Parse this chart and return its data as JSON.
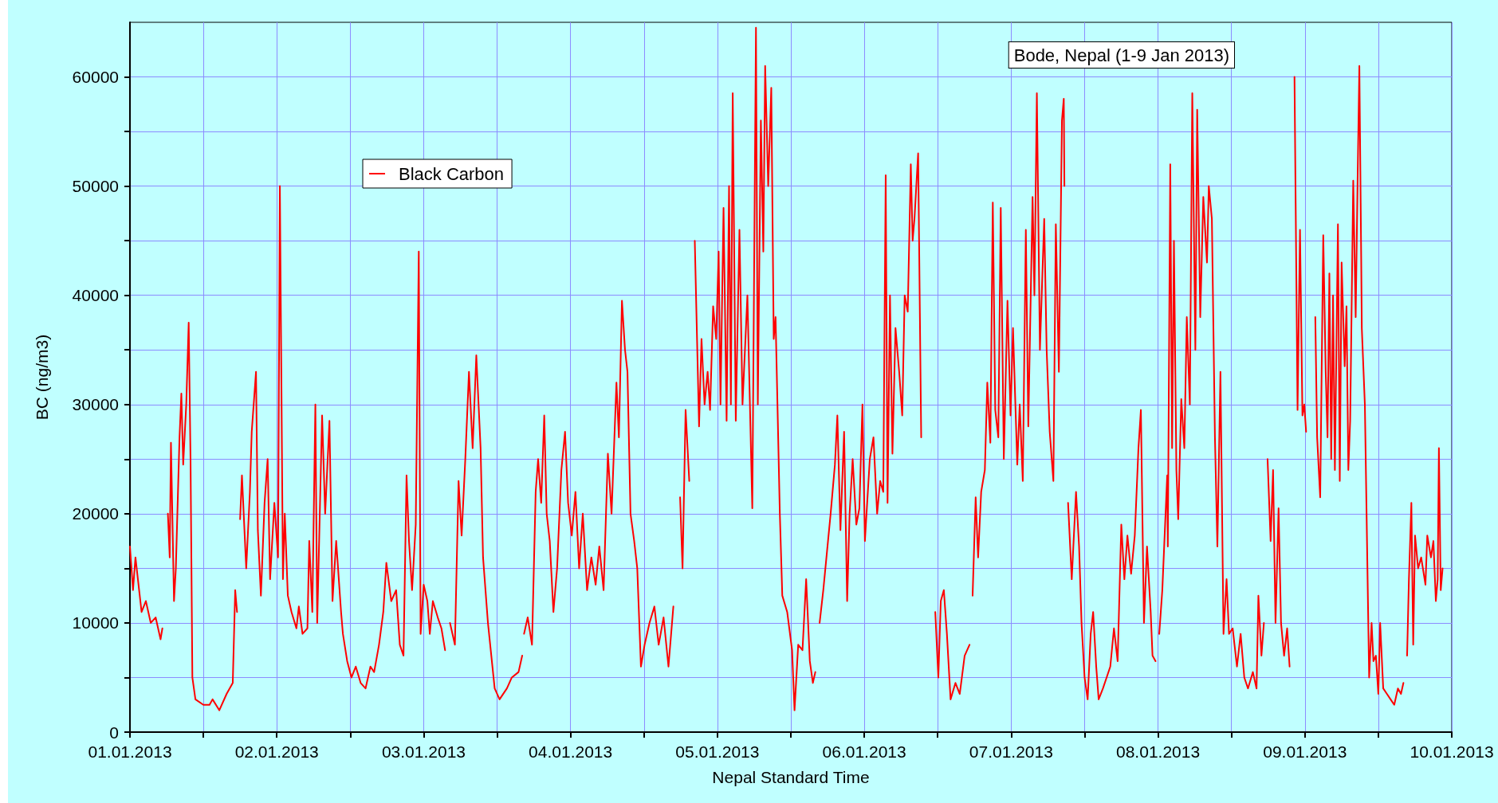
{
  "chart_data": {
    "type": "line",
    "xlabel": "Nepal Standard Time",
    "ylabel": "BC (ng/m3)",
    "annotations": [
      "Bode, Nepal (1-9 Jan 2013)"
    ],
    "xlim": [
      "2013-01-01T00:00",
      "2013-01-10T00:00"
    ],
    "xticks": [
      {
        "value": "2013-01-01T00:00",
        "label": "01.01.2013"
      },
      {
        "value": "2013-01-01T12:00",
        "label": null
      },
      {
        "value": "2013-01-02T00:00",
        "label": "02.01.2013"
      },
      {
        "value": "2013-01-02T12:00",
        "label": null
      },
      {
        "value": "2013-01-03T00:00",
        "label": "03.01.2013"
      },
      {
        "value": "2013-01-03T12:00",
        "label": null
      },
      {
        "value": "2013-01-04T00:00",
        "label": "04.01.2013"
      },
      {
        "value": "2013-01-04T12:00",
        "label": null
      },
      {
        "value": "2013-01-05T00:00",
        "label": "05.01.2013"
      },
      {
        "value": "2013-01-05T12:00",
        "label": null
      },
      {
        "value": "2013-01-06T00:00",
        "label": "06.01.2013"
      },
      {
        "value": "2013-01-06T12:00",
        "label": null
      },
      {
        "value": "2013-01-07T00:00",
        "label": "07.01.2013"
      },
      {
        "value": "2013-01-07T12:00",
        "label": null
      },
      {
        "value": "2013-01-08T00:00",
        "label": "08.01.2013"
      },
      {
        "value": "2013-01-08T12:00",
        "label": null
      },
      {
        "value": "2013-01-09T00:00",
        "label": "09.01.2013"
      },
      {
        "value": "2013-01-09T12:00",
        "label": null
      },
      {
        "value": "2013-01-10T00:00",
        "label": "10.01.2013"
      }
    ],
    "ylim": [
      0,
      65000
    ],
    "yticks": [
      0,
      {
        "value": 5000,
        "label": null
      },
      10000,
      {
        "value": 15000,
        "label": null
      },
      20000,
      {
        "value": 25000,
        "label": null
      },
      30000,
      {
        "value": 35000,
        "label": null
      },
      40000,
      {
        "value": 45000,
        "label": null
      },
      50000,
      {
        "value": 55000,
        "label": null
      },
      60000
    ],
    "grid": true,
    "legend": "top left",
    "marker": "none",
    "line_style": "solid",
    "x": [
      "2013-01-01T00:00",
      "2013-01-01T00:30",
      "2013-01-01T00:54",
      "2013-01-01T01:54",
      "2013-01-01T02:36",
      "2013-01-01T03:24",
      "2013-01-01T04:12",
      "2013-01-01T05:00",
      "2013-01-01T05:18",
      "2013-01-01T05:45",
      "2013-01-01T06:12",
      "2013-01-01T06:30",
      "2013-01-01T06:42",
      "2013-01-01T07:12",
      "2013-01-01T07:30",
      "2013-01-01T08:06",
      "2013-01-01T08:24",
      "2013-01-01T08:42",
      "2013-01-01T09:12",
      "2013-01-01T09:36",
      "2013-01-01T09:54",
      "2013-01-01T10:12",
      "2013-01-01T10:42",
      "2013-01-01T12:00",
      "2013-01-01T13:00",
      "2013-01-01T13:30",
      "2013-01-01T14:36",
      "2013-01-01T15:48",
      "2013-01-01T16:48",
      "2013-01-01T17:12",
      "2013-01-01T17:30",
      "2013-01-01T17:45",
      "2013-01-01T18:00",
      "2013-01-01T18:18",
      "2013-01-01T19:00",
      "2013-01-01T19:36",
      "2013-01-01T19:54",
      "2013-01-01T20:36",
      "2013-01-01T20:54",
      "2013-01-01T21:24",
      "2013-01-01T22:00",
      "2013-01-01T22:30",
      "2013-01-01T22:54",
      "2013-01-01T23:36",
      "2013-01-02T00:12",
      "2013-01-02T00:30",
      "2013-01-02T01:00",
      "2013-01-02T01:18",
      "2013-01-02T01:48",
      "2013-01-02T02:24",
      "2013-01-02T03:12",
      "2013-01-02T03:36",
      "2013-01-02T04:12",
      "2013-01-02T05:00",
      "2013-01-02T05:18",
      "2013-01-02T05:48",
      "2013-01-02T06:18",
      "2013-01-02T06:36",
      "2013-01-02T07:24",
      "2013-01-02T07:54",
      "2013-01-02T08:36",
      "2013-01-02T09:06",
      "2013-01-02T09:42",
      "2013-01-02T10:30",
      "2013-01-02T10:48",
      "2013-01-02T11:30",
      "2013-01-02T12:12",
      "2013-01-02T12:54",
      "2013-01-02T13:42",
      "2013-01-02T14:30",
      "2013-01-02T15:18",
      "2013-01-02T15:54",
      "2013-01-02T16:42",
      "2013-01-02T17:24",
      "2013-01-02T17:54",
      "2013-01-02T18:42",
      "2013-01-02T19:30",
      "2013-01-02T20:06",
      "2013-01-02T20:42",
      "2013-01-02T21:12",
      "2013-01-02T21:36",
      "2013-01-02T22:06",
      "2013-01-02T22:42",
      "2013-01-02T23:12",
      "2013-01-02T23:30",
      "2013-01-03T00:00",
      "2013-01-03T00:36",
      "2013-01-03T01:00",
      "2013-01-03T01:30",
      "2013-01-03T02:18",
      "2013-01-03T02:54",
      "2013-01-03T03:30",
      "2013-01-03T03:54",
      "2013-01-03T04:18",
      "2013-01-03T05:06",
      "2013-01-03T05:42",
      "2013-01-03T06:12",
      "2013-01-03T06:48",
      "2013-01-03T07:24",
      "2013-01-03T08:00",
      "2013-01-03T08:36",
      "2013-01-03T09:18",
      "2013-01-03T09:42",
      "2013-01-03T10:30",
      "2013-01-03T11:36",
      "2013-01-03T12:24",
      "2013-01-03T13:36",
      "2013-01-03T14:24",
      "2013-01-03T15:30",
      "2013-01-03T16:06",
      "2013-01-03T16:15",
      "2013-01-03T16:24",
      "2013-01-03T17:00",
      "2013-01-03T17:42",
      "2013-01-03T18:18",
      "2013-01-03T18:42",
      "2013-01-03T19:12",
      "2013-01-03T19:42",
      "2013-01-03T20:06",
      "2013-01-03T20:36",
      "2013-01-03T21:12",
      "2013-01-03T21:48",
      "2013-01-03T22:30",
      "2013-01-03T23:06",
      "2013-01-03T23:36",
      "2013-01-04T00:12",
      "2013-01-04T00:48",
      "2013-01-04T01:24",
      "2013-01-04T02:00",
      "2013-01-04T02:42",
      "2013-01-04T03:24",
      "2013-01-04T04:06",
      "2013-01-04T04:42",
      "2013-01-04T05:24",
      "2013-01-04T06:06",
      "2013-01-04T06:42",
      "2013-01-04T07:30",
      "2013-01-04T07:54",
      "2013-01-04T08:24",
      "2013-01-04T08:54",
      "2013-01-04T09:18",
      "2013-01-04T09:48",
      "2013-01-04T10:24",
      "2013-01-04T10:54",
      "2013-01-04T11:30",
      "2013-01-04T12:06",
      "2013-01-04T12:54",
      "2013-01-04T13:42",
      "2013-01-04T14:24",
      "2013-01-04T15:12",
      "2013-01-04T16:00",
      "2013-01-04T16:48",
      "2013-01-04T17:15",
      "2013-01-04T17:54",
      "2013-01-04T18:18",
      "2013-01-04T18:48",
      "2013-01-04T19:24",
      "2013-01-04T19:45",
      "2013-01-04T20:18",
      "2013-01-04T21:00",
      "2013-01-04T21:24",
      "2013-01-04T21:54",
      "2013-01-04T22:24",
      "2013-01-04T22:48",
      "2013-01-04T23:18",
      "2013-01-04T23:48",
      "2013-01-05T00:12",
      "2013-01-05T00:30",
      "2013-01-05T01:00",
      "2013-01-05T01:30",
      "2013-01-05T01:54",
      "2013-01-05T02:12",
      "2013-01-05T02:30",
      "2013-01-05T03:00",
      "2013-01-05T03:36",
      "2013-01-05T04:06",
      "2013-01-05T04:54",
      "2013-01-05T05:42",
      "2013-01-05T06:18",
      "2013-01-05T06:36",
      "2013-01-05T07:06",
      "2013-01-05T07:30",
      "2013-01-05T07:48",
      "2013-01-05T08:18",
      "2013-01-05T08:48",
      "2013-01-05T09:12",
      "2013-01-05T09:30",
      "2013-01-05T10:12",
      "2013-01-05T10:36",
      "2013-01-05T11:24",
      "2013-01-05T12:12",
      "2013-01-05T12:36",
      "2013-01-05T13:12",
      "2013-01-05T13:54",
      "2013-01-05T14:30",
      "2013-01-05T15:06",
      "2013-01-05T15:36",
      "2013-01-05T16:00",
      "2013-01-05T16:20",
      "2013-01-05T16:42",
      "2013-01-05T17:18",
      "2013-01-05T17:54",
      "2013-01-05T18:30",
      "2013-01-05T19:12",
      "2013-01-05T19:36",
      "2013-01-05T20:06",
      "2013-01-05T20:42",
      "2013-01-05T21:12",
      "2013-01-05T21:36",
      "2013-01-05T22:06",
      "2013-01-05T22:42",
      "2013-01-05T23:12",
      "2013-01-05T23:42",
      "2013-01-06T00:06",
      "2013-01-06T00:54",
      "2013-01-06T01:30",
      "2013-01-06T02:06",
      "2013-01-06T02:36",
      "2013-01-06T03:06",
      "2013-01-06T03:30",
      "2013-01-06T03:48",
      "2013-01-06T04:12",
      "2013-01-06T04:36",
      "2013-01-06T05:06",
      "2013-01-06T05:42",
      "2013-01-06T06:12",
      "2013-01-06T06:36",
      "2013-01-06T07:06",
      "2013-01-06T07:36",
      "2013-01-06T07:54",
      "2013-01-06T08:12",
      "2013-01-06T08:48",
      "2013-01-06T09:18",
      "2013-01-06T10:30",
      "2013-01-06T11:36",
      "2013-01-06T12:06",
      "2013-01-06T12:30",
      "2013-01-06T13:00",
      "2013-01-06T13:30",
      "2013-01-06T14:06",
      "2013-01-06T14:54",
      "2013-01-06T15:36",
      "2013-01-06T16:24",
      "2013-01-06T17:12",
      "2013-01-06T17:25",
      "2013-01-06T17:42",
      "2013-01-06T18:12",
      "2013-01-06T18:36",
      "2013-01-06T19:06",
      "2013-01-06T19:42",
      "2013-01-06T20:06",
      "2013-01-06T20:36",
      "2013-01-06T21:00",
      "2013-01-06T21:24",
      "2013-01-06T21:54",
      "2013-01-06T22:18",
      "2013-01-06T22:48",
      "2013-01-06T23:24",
      "2013-01-06T23:54",
      "2013-01-07T00:18",
      "2013-01-07T01:00",
      "2013-01-07T01:24",
      "2013-01-07T01:54",
      "2013-01-07T02:24",
      "2013-01-07T02:48",
      "2013-01-07T03:30",
      "2013-01-07T03:48",
      "2013-01-07T04:12",
      "2013-01-07T04:42",
      "2013-01-07T05:24",
      "2013-01-07T05:48",
      "2013-01-07T06:18",
      "2013-01-07T06:54",
      "2013-01-07T07:18",
      "2013-01-07T07:48",
      "2013-01-07T08:18",
      "2013-01-07T08:36",
      "2013-01-07T08:42",
      "2013-01-07T08:50",
      "2013-01-07T09:18",
      "2013-01-07T09:54",
      "2013-01-07T10:36",
      "2013-01-07T11:06",
      "2013-01-07T11:30",
      "2013-01-07T12:00",
      "2013-01-07T12:30",
      "2013-01-07T13:00",
      "2013-01-07T13:24",
      "2013-01-07T13:54",
      "2013-01-07T14:18",
      "2013-01-07T15:00",
      "2013-01-07T15:36",
      "2013-01-07T16:12",
      "2013-01-07T16:48",
      "2013-01-07T17:24",
      "2013-01-07T18:00",
      "2013-01-07T18:30",
      "2013-01-07T19:00",
      "2013-01-07T19:36",
      "2013-01-07T20:12",
      "2013-01-07T20:48",
      "2013-01-07T21:12",
      "2013-01-07T21:42",
      "2013-01-07T22:12",
      "2013-01-07T22:48",
      "2013-01-07T23:06",
      "2013-01-07T23:36",
      "2013-01-07T23:50",
      "2013-01-08T00:12",
      "2013-01-08T00:42",
      "2013-01-08T01:30",
      "2013-01-08T01:36",
      "2013-01-08T02:00",
      "2013-01-08T02:18",
      "2013-01-08T02:36",
      "2013-01-08T03:00",
      "2013-01-08T03:18",
      "2013-01-08T03:48",
      "2013-01-08T04:18",
      "2013-01-08T04:42",
      "2013-01-08T05:12",
      "2013-01-08T05:36",
      "2013-01-08T06:06",
      "2013-01-08T06:24",
      "2013-01-08T06:54",
      "2013-01-08T07:24",
      "2013-01-08T08:00",
      "2013-01-08T08:18",
      "2013-01-08T08:48",
      "2013-01-08T09:18",
      "2013-01-08T09:42",
      "2013-01-08T10:12",
      "2013-01-08T10:42",
      "2013-01-08T11:12",
      "2013-01-08T11:36",
      "2013-01-08T12:12",
      "2013-01-08T12:54",
      "2013-01-08T13:30",
      "2013-01-08T14:06",
      "2013-01-08T14:42",
      "2013-01-08T15:30",
      "2013-01-08T16:06",
      "2013-01-08T16:24",
      "2013-01-08T16:54",
      "2013-01-08T17:18",
      "2013-01-08T17:35",
      "2013-01-08T17:54",
      "2013-01-08T18:24",
      "2013-01-08T18:48",
      "2013-01-08T19:12",
      "2013-01-08T19:42",
      "2013-01-08T20:06",
      "2013-01-08T20:36",
      "2013-01-08T21:06",
      "2013-01-08T21:30",
      "2013-01-08T21:50",
      "2013-01-08T22:18",
      "2013-01-08T22:48",
      "2013-01-08T23:12",
      "2013-01-08T23:36",
      "2013-01-08T23:54",
      "2013-01-09T00:12",
      "2013-01-09T01:00",
      "2013-01-09T01:42",
      "2013-01-09T02:00",
      "2013-01-09T02:30",
      "2013-01-09T03:00",
      "2013-01-09T03:24",
      "2013-01-09T03:42",
      "2013-01-09T04:00",
      "2013-01-09T04:18",
      "2013-01-09T04:36",
      "2013-01-09T04:54",
      "2013-01-09T05:24",
      "2013-01-09T05:42",
      "2013-01-09T06:00",
      "2013-01-09T06:30",
      "2013-01-09T06:48",
      "2013-01-09T07:06",
      "2013-01-09T07:24",
      "2013-01-09T07:54",
      "2013-01-09T08:18",
      "2013-01-09T08:36",
      "2013-01-09T08:54",
      "2013-01-09T09:12",
      "2013-01-09T09:18",
      "2013-01-09T09:48",
      "2013-01-09T10:30",
      "2013-01-09T10:54",
      "2013-01-09T11:12",
      "2013-01-09T11:36",
      "2013-01-09T12:00",
      "2013-01-09T12:18",
      "2013-01-09T12:48",
      "2013-01-09T13:24",
      "2013-01-09T14:00",
      "2013-01-09T14:36",
      "2013-01-09T15:12",
      "2013-01-09T15:42",
      "2013-01-09T16:06",
      "2013-01-09T16:20",
      "2013-01-09T16:42",
      "2013-01-09T17:00",
      "2013-01-09T17:24",
      "2013-01-09T17:42",
      "2013-01-09T18:00",
      "2013-01-09T18:30",
      "2013-01-09T19:00",
      "2013-01-09T19:42",
      "2013-01-09T20:00",
      "2013-01-09T20:36",
      "2013-01-09T21:00",
      "2013-01-09T21:24",
      "2013-01-09T21:42",
      "2013-01-09T21:54",
      "2013-01-09T22:12",
      "2013-01-09T22:30"
    ],
    "series": [
      {
        "name": "Black Carbon",
        "color": "#ff0000",
        "values": [
          17000,
          13000,
          16000,
          11000,
          12000,
          10000,
          10500,
          8500,
          9500,
          null,
          20000,
          16000,
          26500,
          12000,
          15000,
          27000,
          31000,
          24500,
          30000,
          37500,
          25000,
          5000,
          3000,
          2500,
          2500,
          3000,
          2000,
          3500,
          4500,
          13000,
          11000,
          null,
          19500,
          23500,
          15000,
          22000,
          27500,
          33000,
          18500,
          12500,
          21000,
          25000,
          14000,
          21000,
          16000,
          50000,
          14000,
          20000,
          12500,
          11000,
          9500,
          11500,
          9000,
          9500,
          17500,
          11000,
          30000,
          10000,
          29000,
          20000,
          28500,
          12000,
          17500,
          11000,
          9000,
          6500,
          5000,
          6000,
          4500,
          4000,
          6000,
          5500,
          8000,
          11000,
          15500,
          12000,
          13000,
          8000,
          7000,
          23500,
          17500,
          13000,
          19000,
          44000,
          9000,
          13500,
          12000,
          9000,
          12000,
          10500,
          9500,
          7500,
          null,
          10000,
          8000,
          23000,
          18000,
          25000,
          33000,
          26000,
          34500,
          26000,
          16000,
          10000,
          4000,
          3000,
          4000,
          5000,
          5500,
          7000,
          null,
          9000,
          10500,
          8000,
          22000,
          25000,
          21000,
          29000,
          20000,
          17500,
          11000,
          15000,
          24000,
          27500,
          21000,
          18000,
          22000,
          15000,
          20000,
          13000,
          16000,
          13500,
          17000,
          13000,
          25500,
          20000,
          32000,
          27000,
          39500,
          35000,
          33000,
          20000,
          17500,
          15000,
          6000,
          8000,
          10000,
          11500,
          8000,
          10500,
          6000,
          11500,
          null,
          21500,
          15000,
          29500,
          23000,
          null,
          45000,
          28000,
          36000,
          30000,
          33000,
          29500,
          39000,
          36000,
          44000,
          30000,
          48000,
          28500,
          50000,
          30000,
          58500,
          28500,
          46000,
          30000,
          40000,
          20500,
          64500,
          30000,
          56000,
          44000,
          61000,
          50000,
          59000,
          36000,
          38000,
          20000,
          12500,
          11000,
          7500,
          2000,
          8000,
          7500,
          14000,
          6500,
          4500,
          5500,
          null,
          10000,
          13000,
          16500,
          20000,
          24500,
          29000,
          18500,
          27500,
          12000,
          20000,
          25000,
          19000,
          20500,
          30000,
          17500,
          25000,
          27000,
          20000,
          23000,
          22000,
          51000,
          21000,
          40000,
          25500,
          37000,
          33000,
          29000,
          40000,
          38500,
          52000,
          45000,
          47000,
          53000,
          27000,
          null,
          11000,
          5000,
          12000,
          13000,
          9000,
          3000,
          4500,
          3500,
          7000,
          8000,
          null,
          12500,
          21500,
          16000,
          22000,
          24000,
          32000,
          26500,
          48500,
          29500,
          27000,
          48000,
          25000,
          39500,
          29000,
          37000,
          24500,
          30000,
          23000,
          46000,
          28000,
          49000,
          40000,
          58500,
          35000,
          47000,
          35000,
          27500,
          23000,
          46500,
          33000,
          56000,
          58000,
          50000,
          null,
          21000,
          14000,
          22000,
          17000,
          10000,
          5000,
          3000,
          9000,
          11000,
          6000,
          3000,
          4000,
          5000,
          6000,
          9500,
          6500,
          19000,
          14000,
          18000,
          14500,
          18000,
          26000,
          29500,
          10000,
          17000,
          11000,
          7000,
          6500,
          null,
          9000,
          13000,
          23500,
          17000,
          52000,
          26000,
          45000,
          24000,
          19500,
          30500,
          26000,
          38000,
          30000,
          58500,
          35000,
          57000,
          38000,
          49000,
          43000,
          50000,
          47000,
          27000,
          17000,
          33000,
          9000,
          14000,
          9000,
          9500,
          6000,
          9000,
          5000,
          4000,
          5500,
          4000,
          12500,
          7000,
          10000,
          null,
          25000,
          17500,
          24000,
          10000,
          20500,
          10000,
          7000,
          9500,
          6000,
          null,
          60000,
          29500,
          46000,
          29000,
          30000,
          27500,
          null,
          38000,
          27000,
          21500,
          45500,
          33000,
          27000,
          42000,
          25000,
          40000,
          24000,
          46500,
          23000,
          43000,
          33500,
          39000,
          24000,
          28500,
          50500,
          38000,
          50000,
          61000,
          43500,
          37000,
          30000,
          5000,
          10000,
          6500,
          7000,
          3500,
          10000,
          4000,
          3500,
          3000,
          2500,
          4000,
          3500,
          4500,
          null,
          7000,
          14000,
          21000,
          8000,
          18000,
          15000,
          16000,
          13500,
          18000,
          16000,
          17500,
          12000,
          14000,
          26000,
          13000,
          15000
        ]
      }
    ]
  }
}
